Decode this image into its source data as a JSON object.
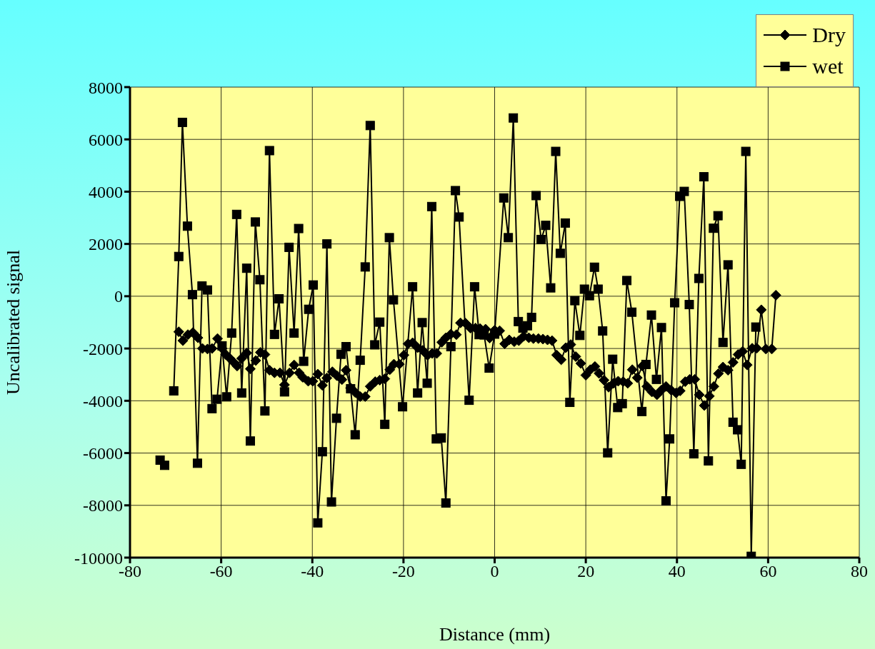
{
  "chart_data": {
    "type": "line",
    "xlabel": "Distance (mm)",
    "ylabel": "Uncalibrated signal",
    "xlim": [
      -80,
      80
    ],
    "xticks": [
      -80,
      -60,
      -40,
      -20,
      0,
      20,
      40,
      60,
      80
    ],
    "ylim": [
      -10000,
      8000
    ],
    "yticks": [
      -10000,
      -8000,
      -6000,
      -4000,
      -2000,
      0,
      2000,
      4000,
      6000,
      8000
    ],
    "grid": true,
    "legend": "top right",
    "series": [
      {
        "name": "Dry",
        "color": "#000000",
        "marker": "diamond",
        "x": [
          -69.3,
          -68.4,
          -67.3,
          -66.2,
          -65.1,
          -64.1,
          -63.0,
          -62.0,
          -60.8,
          -59.8,
          -59.0,
          -58.1,
          -57.3,
          -56.5,
          -55.5,
          -54.4,
          -53.6,
          -52.4,
          -51.4,
          -50.4,
          -49.4,
          -48.3,
          -47.1,
          -46.1,
          -45.0,
          -44.0,
          -42.9,
          -42.1,
          -40.9,
          -39.9,
          -38.8,
          -37.8,
          -36.8,
          -35.6,
          -34.6,
          -33.5,
          -32.6,
          -31.6,
          -30.6,
          -29.5,
          -28.4,
          -27.3,
          -26.2,
          -25.2,
          -24.1,
          -23.0,
          -22.1,
          -20.9,
          -19.9,
          -19.0,
          -18.0,
          -16.9,
          -15.8,
          -14.7,
          -13.7,
          -12.7,
          -11.6,
          -10.7,
          -9.6,
          -8.4,
          -7.5,
          -6.4,
          -5.3,
          -4.2,
          -3.2,
          -2.0,
          -1.1,
          0.0,
          1.1,
          2.2,
          3.2,
          4.3,
          5.3,
          6.4,
          7.5,
          8.5,
          9.6,
          10.6,
          11.6,
          12.6,
          13.6,
          14.6,
          15.6,
          16.7,
          17.8,
          18.9,
          20.0,
          21.0,
          22.0,
          22.9,
          24.0,
          25.0,
          26.1,
          27.1,
          28.2,
          29.2,
          30.2,
          31.3,
          32.4,
          33.4,
          34.5,
          35.6,
          36.6,
          37.6,
          38.7,
          39.8,
          40.7,
          41.8,
          42.8,
          43.9,
          44.9,
          46.0,
          47.1,
          48.1,
          49.1,
          50.1,
          51.2,
          52.3,
          53.4,
          54.4,
          55.4,
          56.5,
          57.5,
          58.5,
          59.5,
          60.8,
          61.7
        ],
        "values": [
          -1360,
          -1700,
          -1470,
          -1390,
          -1590,
          -2000,
          -2020,
          -2000,
          -1620,
          -2000,
          -2230,
          -2380,
          -2520,
          -2670,
          -2380,
          -2170,
          -2780,
          -2460,
          -2150,
          -2230,
          -2830,
          -2930,
          -2930,
          -3390,
          -2930,
          -2630,
          -2930,
          -3100,
          -3250,
          -3250,
          -2980,
          -3410,
          -3130,
          -2890,
          -3040,
          -3190,
          -2830,
          -3510,
          -3680,
          -3840,
          -3840,
          -3450,
          -3270,
          -3210,
          -3160,
          -2810,
          -2600,
          -2600,
          -2250,
          -1820,
          -1780,
          -1970,
          -2070,
          -2260,
          -2190,
          -2190,
          -1760,
          -1590,
          -1450,
          -1470,
          -1020,
          -1030,
          -1220,
          -1220,
          -1240,
          -1260,
          -1600,
          -1300,
          -1320,
          -1820,
          -1670,
          -1740,
          -1700,
          -1530,
          -1590,
          -1620,
          -1620,
          -1640,
          -1670,
          -1700,
          -2250,
          -2430,
          -1970,
          -1850,
          -2310,
          -2570,
          -3020,
          -2810,
          -2690,
          -2950,
          -3210,
          -3480,
          -3330,
          -3250,
          -3270,
          -3330,
          -2810,
          -3120,
          -2670,
          -3450,
          -3660,
          -3770,
          -3590,
          -3450,
          -3590,
          -3700,
          -3620,
          -3270,
          -3180,
          -3180,
          -3770,
          -4180,
          -3820,
          -3450,
          -2960,
          -2710,
          -2830,
          -2530,
          -2230,
          -2110,
          -2630,
          -1990,
          -1990,
          -520,
          -2020,
          -2020,
          40
        ]
      },
      {
        "name": "wet",
        "color": "#000000",
        "marker": "square",
        "x": [
          -73.4,
          -72.4,
          -71.3,
          -70.4,
          -69.3,
          -68.5,
          -67.4,
          -66.3,
          -65.2,
          -64.2,
          -63.0,
          -62.0,
          -60.9,
          -59.8,
          -58.8,
          -57.7,
          -56.6,
          -55.5,
          -54.4,
          -53.6,
          -52.5,
          -51.5,
          -50.4,
          -49.4,
          -48.3,
          -47.3,
          -46.1,
          -45.1,
          -44.0,
          -43.0,
          -41.9,
          -40.8,
          -39.8,
          -38.8,
          -37.8,
          -36.8,
          -35.8,
          -34.7,
          -33.7,
          -32.6,
          -31.6,
          -30.6,
          -29.5,
          -28.4,
          -27.3,
          -26.3,
          -25.2,
          -24.1,
          -23.1,
          -22.2,
          -20.2,
          -18.0,
          -16.9,
          -15.9,
          -14.8,
          -13.8,
          -12.8,
          -11.7,
          -10.7,
          -9.6,
          -8.6,
          -7.8,
          -5.6,
          -4.4,
          -3.4,
          -2.3,
          -1.2,
          0.0,
          2.0,
          3.0,
          4.1,
          5.2,
          6.2,
          7.2,
          8.1,
          9.1,
          10.2,
          11.2,
          12.3,
          13.4,
          14.4,
          15.5,
          16.5,
          17.6,
          18.7,
          19.7,
          20.8,
          21.9,
          22.7,
          23.7,
          24.8,
          25.9,
          27.0,
          28.0,
          29.0,
          30.1,
          32.3,
          33.2,
          34.4,
          35.5,
          36.6,
          37.6,
          38.4,
          39.5,
          40.6,
          41.6,
          42.7,
          43.7,
          44.8,
          45.9,
          46.9,
          48.0,
          49.0,
          50.1,
          51.2,
          52.3,
          53.3,
          54.1,
          55.1,
          56.3,
          57.3
        ],
        "values": [
          -6270,
          -6470,
          null,
          -3620,
          1520,
          6650,
          2680,
          60,
          -6390,
          390,
          240,
          -4300,
          -3940,
          -1900,
          -3850,
          -1410,
          3130,
          -3700,
          1070,
          -5540,
          2840,
          630,
          -4390,
          5570,
          -1460,
          -100,
          -3660,
          1870,
          -1410,
          2590,
          -2490,
          -500,
          430,
          -8670,
          -5950,
          2000,
          -7870,
          -4670,
          -2220,
          -1930,
          -3540,
          -5300,
          -2450,
          1120,
          6530,
          -1860,
          -990,
          -4900,
          2240,
          -140,
          -4230,
          360,
          -3700,
          -1010,
          -3330,
          3430,
          -5460,
          -5420,
          -7910,
          -1930,
          4040,
          3030,
          -3980,
          360,
          -1470,
          -1480,
          -2750,
          -1450,
          3760,
          2240,
          6820,
          -970,
          -1220,
          -1130,
          -810,
          3850,
          2170,
          2710,
          320,
          5540,
          1640,
          2800,
          -4060,
          -170,
          -1500,
          270,
          20,
          1110,
          270,
          -1330,
          -5990,
          -2410,
          -4260,
          -4110,
          600,
          -610,
          -4410,
          -2610,
          -720,
          -3180,
          -1200,
          -7830,
          -5460,
          -250,
          3820,
          4010,
          -320,
          -6030,
          680,
          4570,
          -6300,
          2600,
          3080,
          -1770,
          1200,
          -4820,
          -5110,
          -6430,
          5540,
          -9950,
          -1180
        ]
      }
    ]
  }
}
